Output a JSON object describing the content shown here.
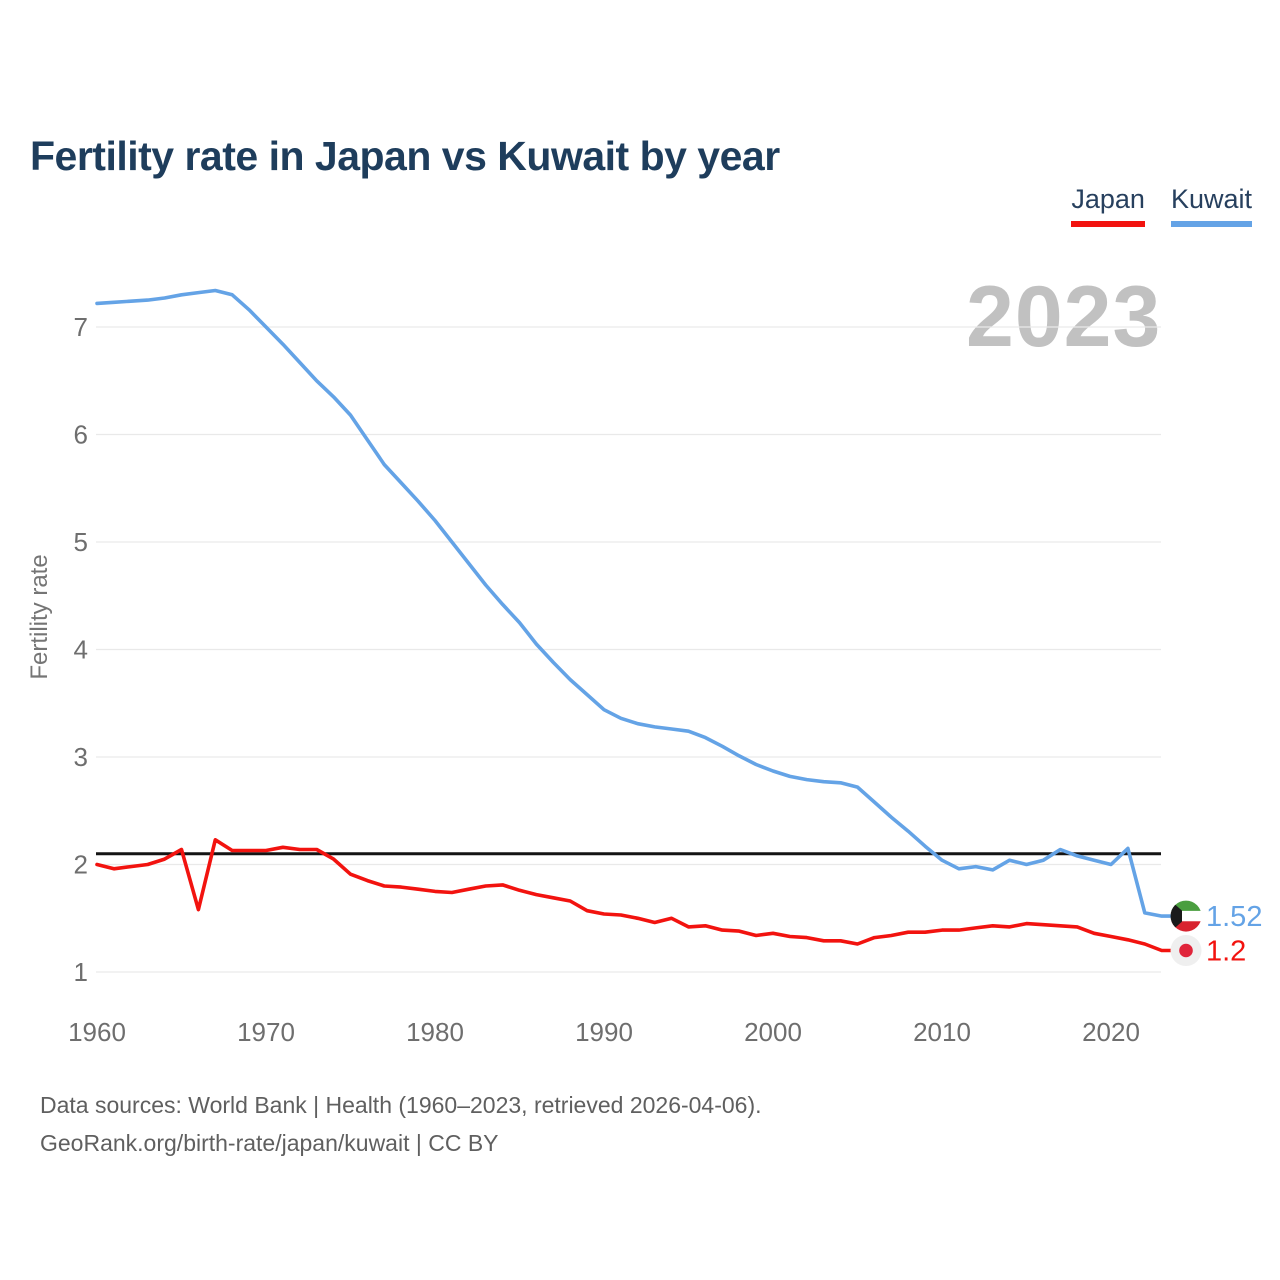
{
  "header": {
    "title": "Fertility rate in Japan vs Kuwait by year"
  },
  "legend": {
    "items": [
      {
        "label": "Japan",
        "color": "#f2130f"
      },
      {
        "label": "Kuwait",
        "color": "#64a3e6"
      }
    ]
  },
  "watermark": "2023",
  "footer": {
    "line1": "Data sources: World Bank | Health (1960–2023, retrieved 2026-04-06).",
    "line2": "GeoRank.org/birth-rate/japan/kuwait | CC BY"
  },
  "colors": {
    "title": "#1e3d5c",
    "legend_text": "#27405e",
    "tick": "#6e6e6e",
    "axis_title": "#757575",
    "grid": "#e9e9e9",
    "watermark": "#c1c1c1",
    "footer": "#5f5f5f",
    "japan_red": "#f2130f",
    "kuwait_blue": "#64a3e6",
    "reference_line": "#141414",
    "kuwait_flag_green": "#4a9e3f",
    "kuwait_flag_red": "#d8232f",
    "kuwait_flag_black": "#1a1a1a",
    "japan_flag_bg": "#efefef",
    "japan_flag_dot": "#e0243a"
  },
  "chart_data": {
    "type": "line",
    "title": "Fertility rate in Japan vs Kuwait by year",
    "xlabel": "",
    "ylabel": "Fertility rate",
    "x_range": [
      1960,
      2023
    ],
    "x_step": 1,
    "ylim": [
      1,
      7.35
    ],
    "x_ticks": [
      1960,
      1970,
      1980,
      1990,
      2000,
      2010,
      2020
    ],
    "y_ticks": [
      1,
      2,
      3,
      4,
      5,
      6,
      7
    ],
    "grid": "horizontal",
    "legend_position": "top-right",
    "year_watermark": "2023",
    "reference_line": {
      "value": 2.1
    },
    "series": [
      {
        "name": "Japan",
        "color": "#f2130f",
        "end_label": "1.2",
        "flag": "japan",
        "values": [
          2.0,
          1.96,
          1.98,
          2.0,
          2.05,
          2.14,
          1.58,
          2.23,
          2.13,
          2.13,
          2.13,
          2.16,
          2.14,
          2.14,
          2.05,
          1.91,
          1.85,
          1.8,
          1.79,
          1.77,
          1.75,
          1.74,
          1.77,
          1.8,
          1.81,
          1.76,
          1.72,
          1.69,
          1.66,
          1.57,
          1.54,
          1.53,
          1.5,
          1.46,
          1.5,
          1.42,
          1.43,
          1.39,
          1.38,
          1.34,
          1.36,
          1.33,
          1.32,
          1.29,
          1.29,
          1.26,
          1.32,
          1.34,
          1.37,
          1.37,
          1.39,
          1.39,
          1.41,
          1.43,
          1.42,
          1.45,
          1.44,
          1.43,
          1.42,
          1.36,
          1.33,
          1.3,
          1.26,
          1.2
        ]
      },
      {
        "name": "Kuwait",
        "color": "#64a3e6",
        "end_label": "1.52",
        "flag": "kuwait",
        "values": [
          7.22,
          7.23,
          7.24,
          7.25,
          7.27,
          7.3,
          7.32,
          7.34,
          7.3,
          7.16,
          7.0,
          6.84,
          6.67,
          6.5,
          6.35,
          6.18,
          5.95,
          5.72,
          5.55,
          5.38,
          5.2,
          5.0,
          4.8,
          4.6,
          4.42,
          4.25,
          4.05,
          3.88,
          3.72,
          3.58,
          3.44,
          3.36,
          3.31,
          3.28,
          3.26,
          3.24,
          3.18,
          3.1,
          3.01,
          2.93,
          2.87,
          2.82,
          2.79,
          2.77,
          2.76,
          2.72,
          2.58,
          2.44,
          2.31,
          2.17,
          2.04,
          1.96,
          1.98,
          1.95,
          2.04,
          2.0,
          2.04,
          2.14,
          2.08,
          2.04,
          2.0,
          2.15,
          1.55,
          1.52
        ]
      }
    ]
  }
}
